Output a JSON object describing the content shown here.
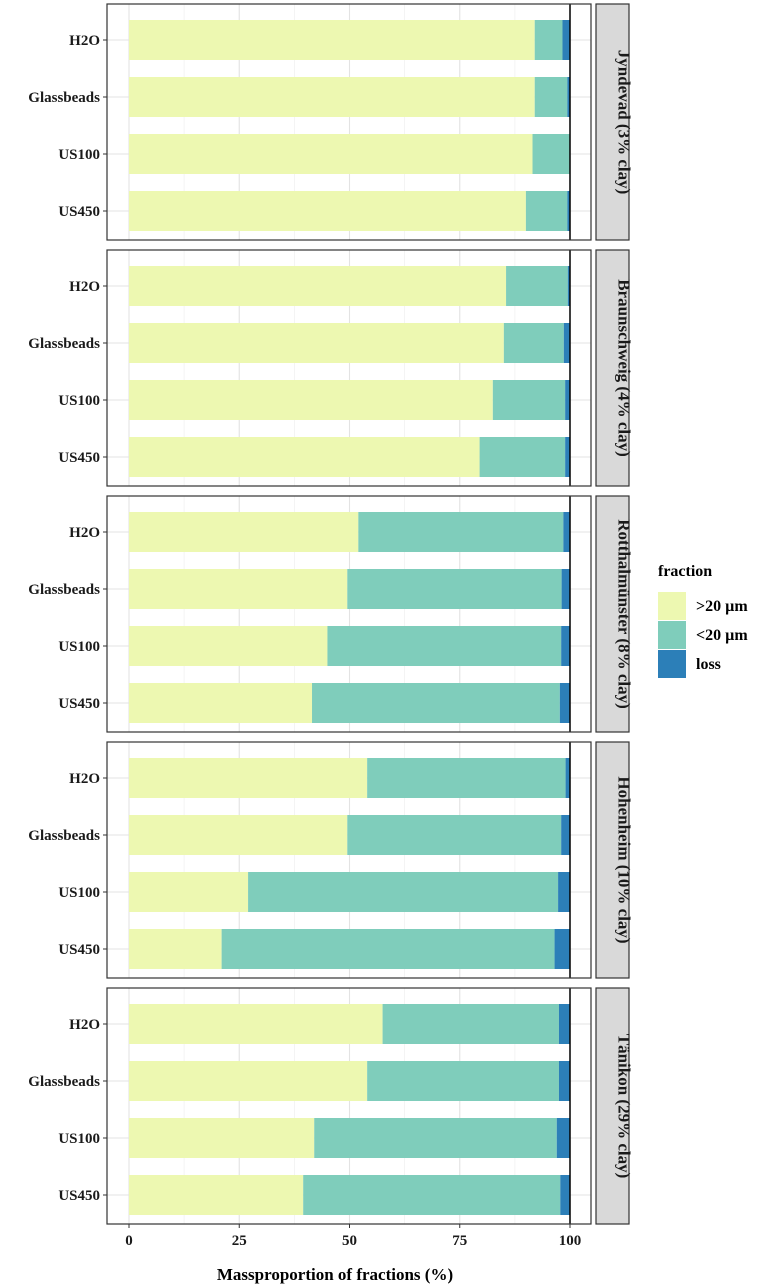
{
  "chart_data": {
    "type": "bar",
    "orientation": "horizontal",
    "stacked": true,
    "xlabel": "Massproportion of fractions (%)",
    "xlim": [
      0,
      100
    ],
    "xticks": [
      0,
      25,
      50,
      75,
      100
    ],
    "categories": [
      "H2O",
      "Glassbeads",
      "US100",
      "US450"
    ],
    "legend": {
      "title": "fraction",
      "position": "right",
      "entries": [
        {
          "key": "gt20",
          "label": ">20 µm",
          "color": "#edf8b1"
        },
        {
          "key": "lt20",
          "label": "<20 µm",
          "color": "#7fcdbb"
        },
        {
          "key": "loss",
          "label": "loss",
          "color": "#2c7fb8"
        }
      ]
    },
    "facets": [
      {
        "label": "Jyndevad (3% clay)",
        "bars": [
          {
            "category": "H2O",
            "gt20": 92.0,
            "lt20": 6.3,
            "loss": 1.7
          },
          {
            "category": "Glassbeads",
            "gt20": 92.0,
            "lt20": 7.4,
            "loss": 0.6
          },
          {
            "category": "US100",
            "gt20": 91.5,
            "lt20": 8.4,
            "loss": 0.1
          },
          {
            "category": "US450",
            "gt20": 90.0,
            "lt20": 9.4,
            "loss": 0.6
          }
        ]
      },
      {
        "label": "Braunschweig (4% clay)",
        "bars": [
          {
            "category": "H2O",
            "gt20": 85.5,
            "lt20": 14.0,
            "loss": 0.5
          },
          {
            "category": "Glassbeads",
            "gt20": 85.0,
            "lt20": 13.6,
            "loss": 1.4
          },
          {
            "category": "US100",
            "gt20": 82.5,
            "lt20": 16.4,
            "loss": 1.1
          },
          {
            "category": "US450",
            "gt20": 79.5,
            "lt20": 19.4,
            "loss": 1.1
          }
        ]
      },
      {
        "label": "Rotthalmünster (8% clay)",
        "bars": [
          {
            "category": "H2O",
            "gt20": 52.0,
            "lt20": 46.5,
            "loss": 1.5
          },
          {
            "category": "Glassbeads",
            "gt20": 49.5,
            "lt20": 48.6,
            "loss": 1.9
          },
          {
            "category": "US100",
            "gt20": 45.0,
            "lt20": 53.0,
            "loss": 2.0
          },
          {
            "category": "US450",
            "gt20": 41.5,
            "lt20": 56.2,
            "loss": 2.3
          }
        ]
      },
      {
        "label": "Hohenheim (10% clay)",
        "bars": [
          {
            "category": "H2O",
            "gt20": 54.0,
            "lt20": 45.0,
            "loss": 1.0
          },
          {
            "category": "Glassbeads",
            "gt20": 49.5,
            "lt20": 48.5,
            "loss": 2.0
          },
          {
            "category": "US100",
            "gt20": 27.0,
            "lt20": 70.3,
            "loss": 2.7
          },
          {
            "category": "US450",
            "gt20": 21.0,
            "lt20": 75.5,
            "loss": 3.5
          }
        ]
      },
      {
        "label": "Tänikon (29% clay)",
        "bars": [
          {
            "category": "H2O",
            "gt20": 57.5,
            "lt20": 40.0,
            "loss": 2.5
          },
          {
            "category": "Glassbeads",
            "gt20": 54.0,
            "lt20": 43.5,
            "loss": 2.5
          },
          {
            "category": "US100",
            "gt20": 42.0,
            "lt20": 55.0,
            "loss": 3.0
          },
          {
            "category": "US450",
            "gt20": 39.5,
            "lt20": 58.3,
            "loss": 2.2
          }
        ]
      }
    ]
  }
}
